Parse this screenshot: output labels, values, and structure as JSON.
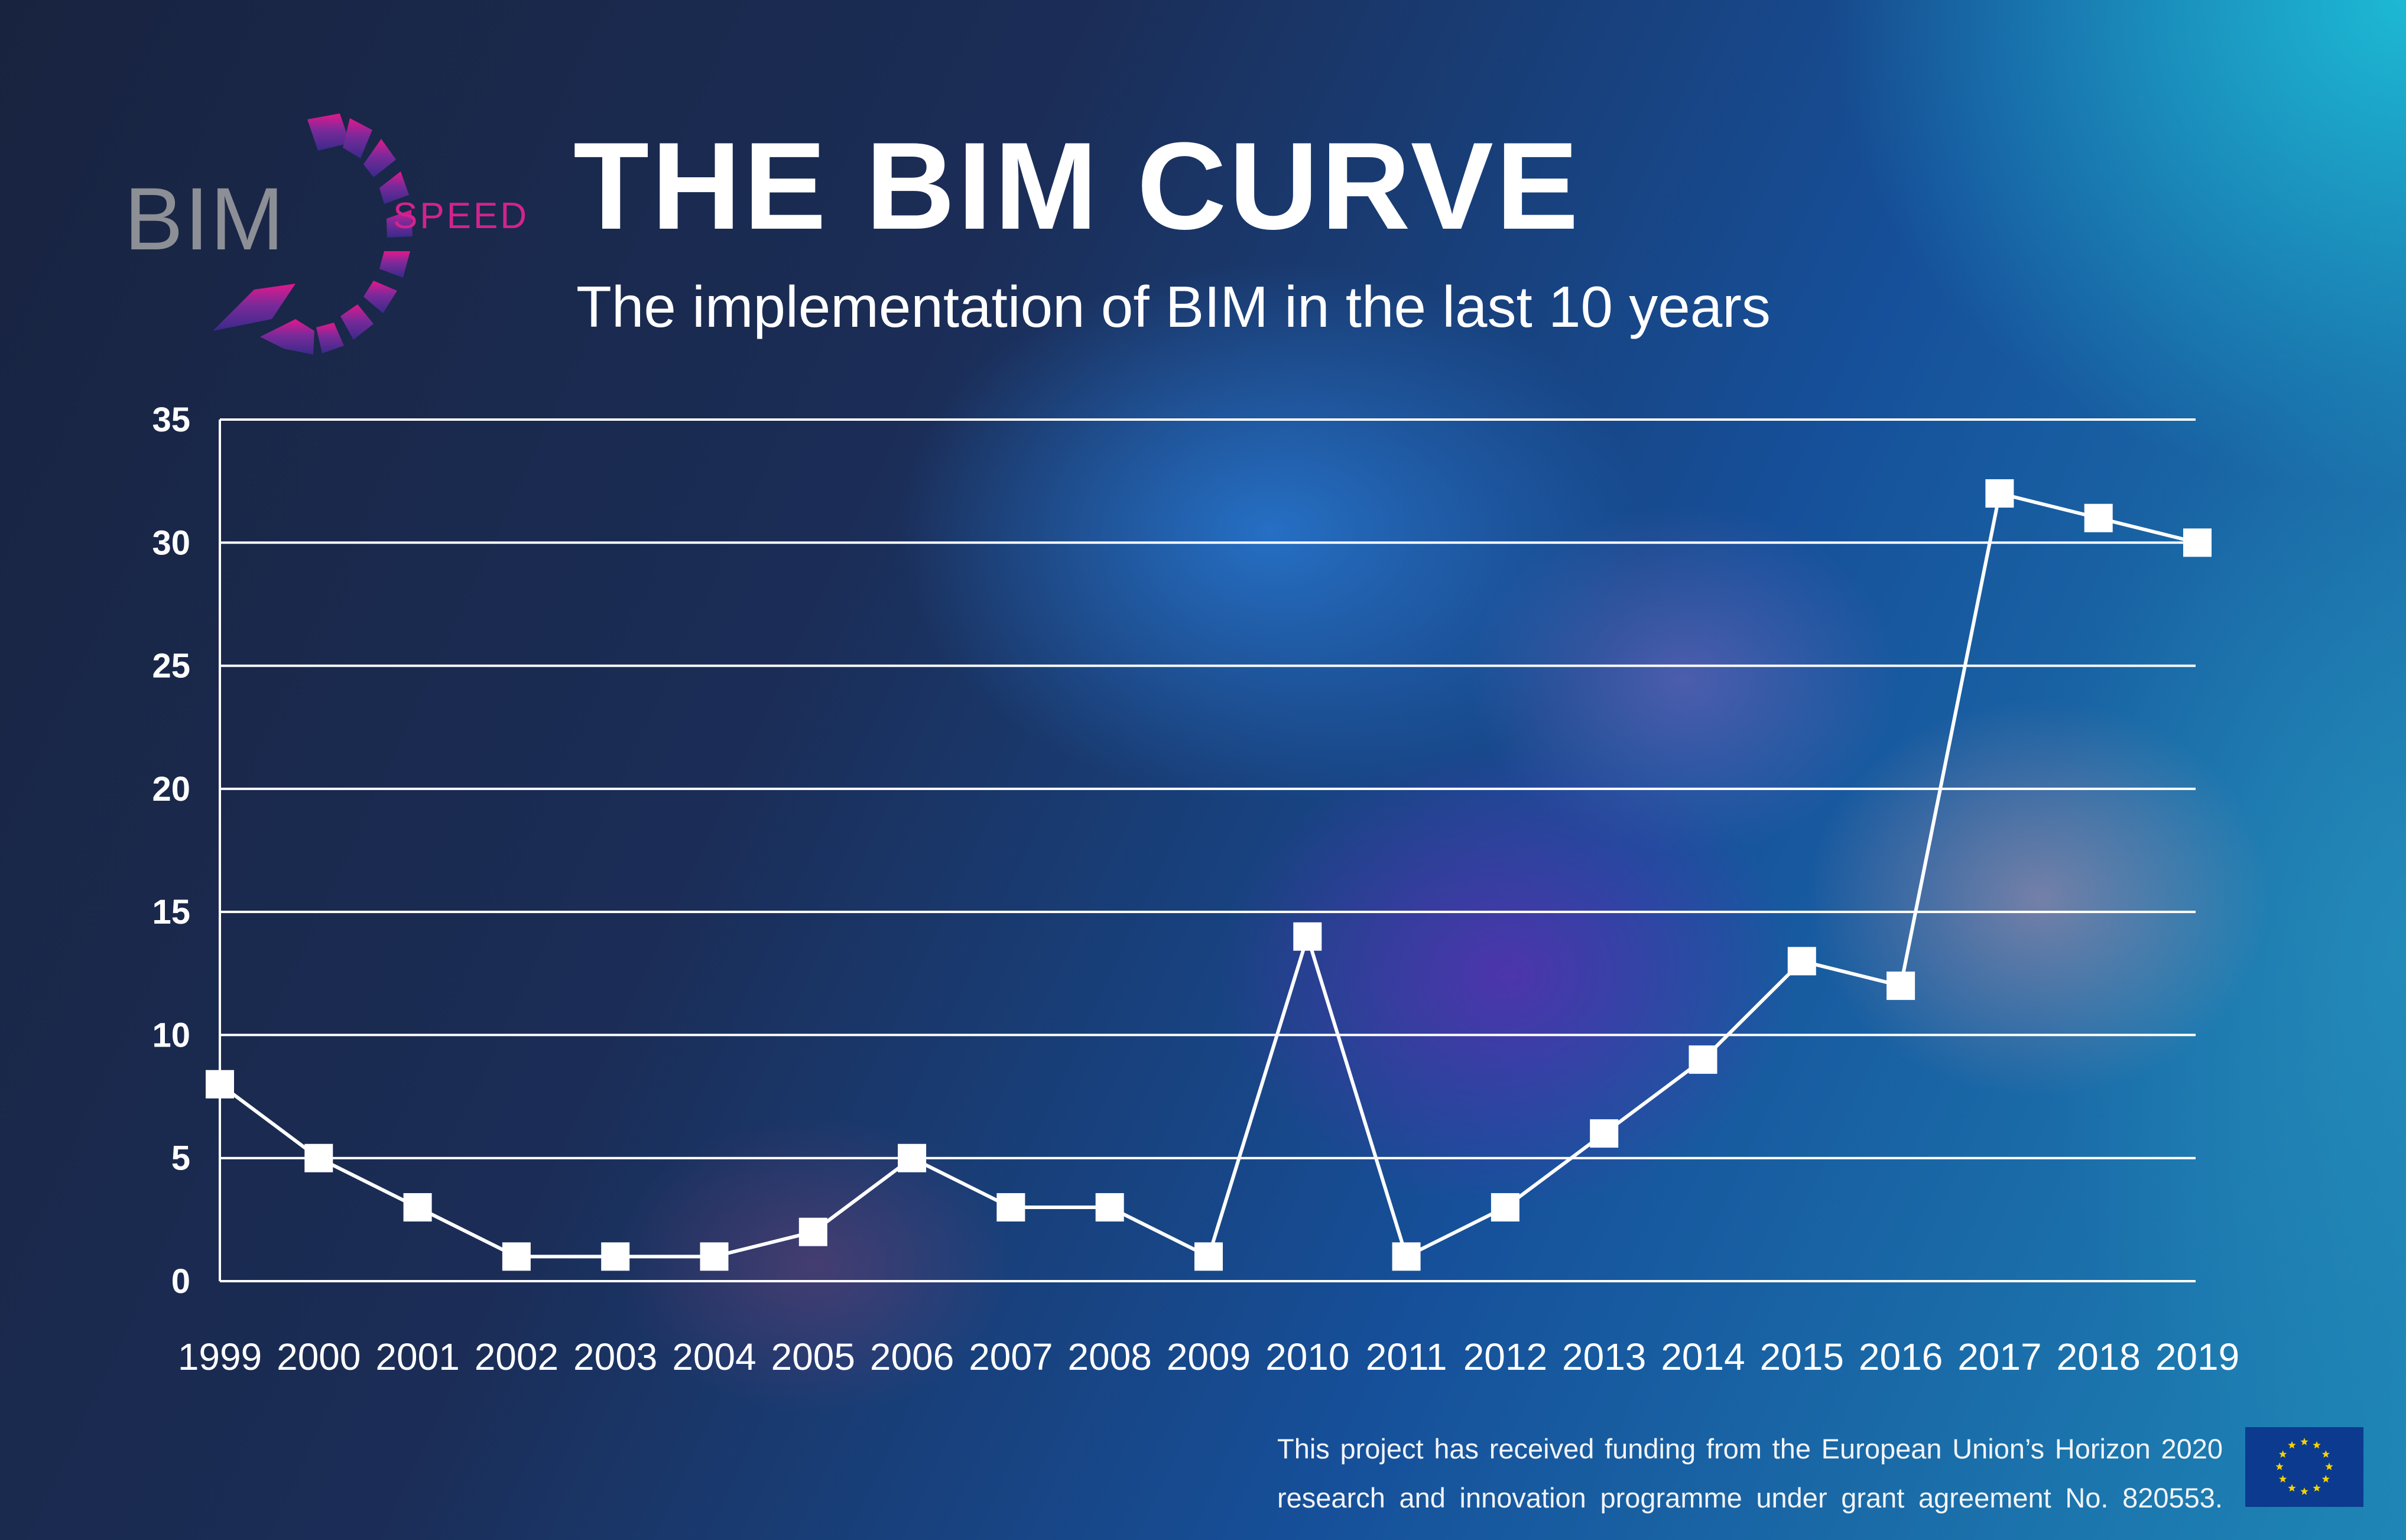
{
  "logo": {
    "bim_text": "BIM",
    "speed_text": "SPEED"
  },
  "title": "THE BIM CURVE",
  "subtitle": "The implementation of BIM in the last 10 years",
  "footer": {
    "line1": "This project has received funding from the European Union’s Horizon 2020",
    "line2": "research and innovation programme under grant agreement No. 820553."
  },
  "colors": {
    "background_dark": "#18233f",
    "background_cyan": "#1ec8dc",
    "logo_pink": "#d2238d",
    "logo_grey": "#8c8f95",
    "line": "#ffffff",
    "eu_blue": "#0b3a8f",
    "eu_star": "#f5d300"
  },
  "eu_flag": {
    "icon": "eu-flag-icon"
  },
  "chart_data": {
    "type": "line",
    "categories": [
      "1999",
      "2000",
      "2001",
      "2002",
      "2003",
      "2004",
      "2005",
      "2006",
      "2007",
      "2008",
      "2009",
      "2010",
      "2011",
      "2012",
      "2013",
      "2014",
      "2015",
      "2016",
      "2017",
      "2018",
      "2019"
    ],
    "series": [
      {
        "values": [
          8,
          5,
          3,
          1,
          1,
          1,
          2,
          5,
          3,
          3,
          1,
          14,
          1,
          3,
          6,
          9,
          13,
          12,
          32,
          31,
          30
        ]
      }
    ],
    "yticks": [
      0,
      5,
      10,
      15,
      20,
      25,
      30,
      35
    ],
    "ylim": [
      0,
      35
    ],
    "grid": true,
    "marker": "square",
    "legend": "none"
  }
}
